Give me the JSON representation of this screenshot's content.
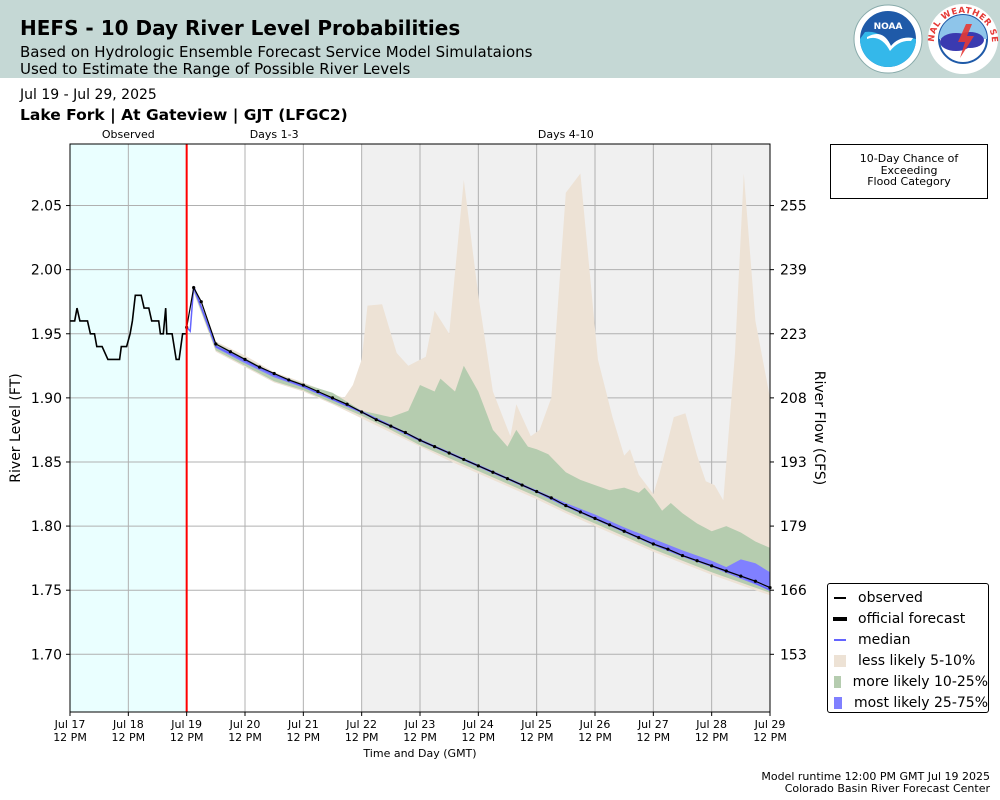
{
  "header": {
    "title": "HEFS - 10 Day River Level Probabilities",
    "subtitle1": "Based on Hydrologic Ensemble Forecast Service Model Simulataions",
    "subtitle2": "Used to Estimate the Range of Possible River Levels",
    "noaa_logo_text": "NOAA",
    "nws_logo_text": "NATIONAL WEATHER SERVICE"
  },
  "date_range": "Jul 19 - Jul 29, 2025",
  "location": "Lake Fork | At Gateview | GJT (LFGC2)",
  "exceedance_box": {
    "line1": "10-Day Chance of",
    "line2": "Exceeding",
    "line3": "Flood Category"
  },
  "footer": {
    "runtime": "Model runtime 12:00 PM GMT Jul 19 2025",
    "center": "Colorado Basin River Forecast Center"
  },
  "colors": {
    "observed_bg": "#eaffff",
    "later_bg": "#f0f0f0",
    "now_line": "#ff0000",
    "observed": "#000000",
    "median": "#6464ff",
    "less_likely": "#ede2d5",
    "more_likely": "#b5ccaf",
    "most_likely": "#8080ff"
  },
  "legend": [
    {
      "key": "observed",
      "label": "observed",
      "style": "line",
      "color": "#000000"
    },
    {
      "key": "official",
      "label": "official forecast",
      "style": "dotline",
      "color": "#000000"
    },
    {
      "key": "median",
      "label": "median",
      "style": "line",
      "color": "#6464ff"
    },
    {
      "key": "less",
      "label": "less likely 5-10%",
      "style": "box",
      "color": "#ede2d5"
    },
    {
      "key": "more",
      "label": "more likely 10-25%",
      "style": "box",
      "color": "#b5ccaf"
    },
    {
      "key": "most",
      "label": "most likely 25-75%",
      "style": "box",
      "color": "#8080ff"
    }
  ],
  "chart_data": {
    "type": "area",
    "xlabel": "Time and Day (GMT)",
    "ylabel": "River Level (FT)",
    "y2label": "River Flow (CFS)",
    "xlim": [
      0,
      12
    ],
    "ylim": [
      1.655,
      2.098
    ],
    "x_ticks": [
      {
        "x": 0,
        "line1": "Jul 17",
        "line2": "12 PM"
      },
      {
        "x": 1,
        "line1": "Jul 18",
        "line2": "12 PM"
      },
      {
        "x": 2,
        "line1": "Jul 19",
        "line2": "12 PM"
      },
      {
        "x": 3,
        "line1": "Jul 20",
        "line2": "12 PM"
      },
      {
        "x": 4,
        "line1": "Jul 21",
        "line2": "12 PM"
      },
      {
        "x": 5,
        "line1": "Jul 22",
        "line2": "12 PM"
      },
      {
        "x": 6,
        "line1": "Jul 23",
        "line2": "12 PM"
      },
      {
        "x": 7,
        "line1": "Jul 24",
        "line2": "12 PM"
      },
      {
        "x": 8,
        "line1": "Jul 25",
        "line2": "12 PM"
      },
      {
        "x": 9,
        "line1": "Jul 26",
        "line2": "12 PM"
      },
      {
        "x": 10,
        "line1": "Jul 27",
        "line2": "12 PM"
      },
      {
        "x": 11,
        "line1": "Jul 28",
        "line2": "12 PM"
      },
      {
        "x": 12,
        "line1": "Jul 29",
        "line2": "12 PM"
      }
    ],
    "y_ticks": [
      1.7,
      1.75,
      1.8,
      1.85,
      1.9,
      1.95,
      2.0,
      2.05
    ],
    "y_tick_labels": [
      "1.70",
      "1.75",
      "1.80",
      "1.85",
      "1.90",
      "1.95",
      "2.00",
      "2.05"
    ],
    "y2_tick_labels": [
      "153",
      "166",
      "179",
      "193",
      "208",
      "223",
      "239",
      "255"
    ],
    "periods": [
      {
        "label": "Observed",
        "x_start": 0,
        "x_end": 2
      },
      {
        "label": "Days 1-3",
        "x_start": 2,
        "x_end": 5
      },
      {
        "label": "Days 4-10",
        "x_start": 5,
        "x_end": 12
      }
    ],
    "now_x": 2,
    "observed": [
      [
        0,
        1.96
      ],
      [
        0.08,
        1.96
      ],
      [
        0.12,
        1.97
      ],
      [
        0.17,
        1.96
      ],
      [
        0.3,
        1.96
      ],
      [
        0.35,
        1.95
      ],
      [
        0.42,
        1.95
      ],
      [
        0.46,
        1.94
      ],
      [
        0.55,
        1.94
      ],
      [
        0.65,
        1.93
      ],
      [
        0.85,
        1.93
      ],
      [
        0.88,
        1.94
      ],
      [
        0.97,
        1.94
      ],
      [
        1.03,
        1.95
      ],
      [
        1.07,
        1.96
      ],
      [
        1.12,
        1.98
      ],
      [
        1.22,
        1.98
      ],
      [
        1.27,
        1.97
      ],
      [
        1.35,
        1.97
      ],
      [
        1.4,
        1.96
      ],
      [
        1.52,
        1.96
      ],
      [
        1.55,
        1.95
      ],
      [
        1.6,
        1.95
      ],
      [
        1.64,
        1.97
      ],
      [
        1.66,
        1.95
      ],
      [
        1.75,
        1.95
      ],
      [
        1.82,
        1.93
      ],
      [
        1.87,
        1.93
      ],
      [
        1.93,
        1.95
      ],
      [
        2.0,
        1.95
      ]
    ],
    "official_forecast": [
      [
        2.0,
        1.955
      ],
      [
        2.12,
        1.986
      ],
      [
        2.25,
        1.975
      ],
      [
        2.5,
        1.942
      ],
      [
        2.75,
        1.936
      ],
      [
        3.0,
        1.93
      ],
      [
        3.25,
        1.924
      ],
      [
        3.5,
        1.919
      ],
      [
        3.75,
        1.914
      ],
      [
        4.0,
        1.91
      ],
      [
        4.25,
        1.905
      ],
      [
        4.5,
        1.9
      ],
      [
        4.75,
        1.895
      ],
      [
        5.0,
        1.889
      ],
      [
        5.25,
        1.883
      ],
      [
        5.5,
        1.878
      ],
      [
        5.75,
        1.873
      ],
      [
        6.0,
        1.867
      ],
      [
        6.25,
        1.862
      ],
      [
        6.5,
        1.857
      ],
      [
        6.75,
        1.852
      ],
      [
        7.0,
        1.847
      ],
      [
        7.25,
        1.842
      ],
      [
        7.5,
        1.837
      ],
      [
        7.75,
        1.832
      ],
      [
        8.0,
        1.827
      ],
      [
        8.25,
        1.822
      ],
      [
        8.5,
        1.816
      ],
      [
        8.75,
        1.811
      ],
      [
        9.0,
        1.806
      ],
      [
        9.25,
        1.801
      ],
      [
        9.5,
        1.796
      ],
      [
        9.75,
        1.791
      ],
      [
        10.0,
        1.786
      ],
      [
        10.25,
        1.782
      ],
      [
        10.5,
        1.777
      ],
      [
        10.75,
        1.773
      ],
      [
        11.0,
        1.769
      ],
      [
        11.25,
        1.765
      ],
      [
        11.5,
        1.761
      ],
      [
        11.75,
        1.757
      ],
      [
        12.0,
        1.752
      ]
    ],
    "median": [
      [
        2.0,
        1.955
      ],
      [
        2.06,
        1.952
      ],
      [
        2.12,
        1.987
      ],
      [
        2.5,
        1.94
      ],
      [
        3.0,
        1.929
      ],
      [
        3.5,
        1.918
      ],
      [
        4.0,
        1.909
      ],
      [
        4.5,
        1.899
      ],
      [
        5.0,
        1.889
      ],
      [
        5.5,
        1.878
      ],
      [
        6.0,
        1.867
      ],
      [
        6.5,
        1.857
      ],
      [
        7.0,
        1.847
      ],
      [
        7.5,
        1.837
      ],
      [
        8.0,
        1.827
      ],
      [
        8.5,
        1.816
      ],
      [
        9.0,
        1.806
      ],
      [
        9.5,
        1.796
      ],
      [
        10.0,
        1.786
      ],
      [
        10.5,
        1.777
      ],
      [
        11.0,
        1.769
      ],
      [
        11.5,
        1.761
      ],
      [
        12.0,
        1.75
      ]
    ],
    "less_likely_upper": [
      [
        2.0,
        1.955
      ],
      [
        2.12,
        1.988
      ],
      [
        2.5,
        1.944
      ],
      [
        3.0,
        1.933
      ],
      [
        3.5,
        1.92
      ],
      [
        4.0,
        1.912
      ],
      [
        4.5,
        1.903
      ],
      [
        4.7,
        1.9
      ],
      [
        4.85,
        1.91
      ],
      [
        5.0,
        1.93
      ],
      [
        5.1,
        1.972
      ],
      [
        5.35,
        1.973
      ],
      [
        5.6,
        1.935
      ],
      [
        5.8,
        1.925
      ],
      [
        6.1,
        1.932
      ],
      [
        6.25,
        1.968
      ],
      [
        6.5,
        1.95
      ],
      [
        6.75,
        2.07
      ],
      [
        7.0,
        1.98
      ],
      [
        7.25,
        1.905
      ],
      [
        7.55,
        1.87
      ],
      [
        7.65,
        1.895
      ],
      [
        7.9,
        1.87
      ],
      [
        8.05,
        1.875
      ],
      [
        8.25,
        1.9
      ],
      [
        8.5,
        2.06
      ],
      [
        8.75,
        2.075
      ],
      [
        9.05,
        1.93
      ],
      [
        9.3,
        1.885
      ],
      [
        9.5,
        1.855
      ],
      [
        9.6,
        1.86
      ],
      [
        9.75,
        1.84
      ],
      [
        10.0,
        1.825
      ],
      [
        10.1,
        1.84
      ],
      [
        10.35,
        1.885
      ],
      [
        10.55,
        1.888
      ],
      [
        10.75,
        1.855
      ],
      [
        10.9,
        1.835
      ],
      [
        11.05,
        1.832
      ],
      [
        11.2,
        1.82
      ],
      [
        11.4,
        1.935
      ],
      [
        11.55,
        2.075
      ],
      [
        11.75,
        1.96
      ],
      [
        12.0,
        1.9
      ]
    ],
    "less_likely_lower": [
      [
        2.0,
        1.955
      ],
      [
        2.12,
        1.982
      ],
      [
        2.5,
        1.936
      ],
      [
        3.0,
        1.924
      ],
      [
        3.5,
        1.912
      ],
      [
        4.0,
        1.905
      ],
      [
        4.5,
        1.895
      ],
      [
        5.0,
        1.884
      ],
      [
        5.5,
        1.873
      ],
      [
        6.0,
        1.862
      ],
      [
        6.5,
        1.851
      ],
      [
        7.0,
        1.841
      ],
      [
        7.5,
        1.831
      ],
      [
        8.0,
        1.821
      ],
      [
        8.5,
        1.81
      ],
      [
        9.0,
        1.8
      ],
      [
        9.5,
        1.79
      ],
      [
        10.0,
        1.78
      ],
      [
        10.5,
        1.771
      ],
      [
        11.0,
        1.762
      ],
      [
        11.5,
        1.754
      ],
      [
        12.0,
        1.746
      ]
    ],
    "more_likely_upper": [
      [
        2.0,
        1.955
      ],
      [
        2.12,
        1.987
      ],
      [
        2.5,
        1.943
      ],
      [
        3.0,
        1.931
      ],
      [
        3.5,
        1.919
      ],
      [
        4.0,
        1.911
      ],
      [
        4.5,
        1.904
      ],
      [
        5.0,
        1.89
      ],
      [
        5.5,
        1.885
      ],
      [
        5.8,
        1.89
      ],
      [
        6.0,
        1.91
      ],
      [
        6.25,
        1.905
      ],
      [
        6.35,
        1.915
      ],
      [
        6.6,
        1.905
      ],
      [
        6.75,
        1.925
      ],
      [
        7.0,
        1.905
      ],
      [
        7.25,
        1.875
      ],
      [
        7.5,
        1.862
      ],
      [
        7.65,
        1.875
      ],
      [
        7.85,
        1.862
      ],
      [
        8.0,
        1.86
      ],
      [
        8.2,
        1.856
      ],
      [
        8.5,
        1.842
      ],
      [
        8.75,
        1.836
      ],
      [
        9.0,
        1.832
      ],
      [
        9.25,
        1.828
      ],
      [
        9.5,
        1.83
      ],
      [
        9.75,
        1.826
      ],
      [
        9.85,
        1.83
      ],
      [
        10.0,
        1.822
      ],
      [
        10.15,
        1.812
      ],
      [
        10.3,
        1.818
      ],
      [
        10.5,
        1.81
      ],
      [
        10.75,
        1.802
      ],
      [
        11.0,
        1.796
      ],
      [
        11.25,
        1.8
      ],
      [
        11.5,
        1.795
      ],
      [
        11.75,
        1.788
      ],
      [
        12.0,
        1.783
      ]
    ],
    "more_likely_lower": [
      [
        2.0,
        1.955
      ],
      [
        2.12,
        1.983
      ],
      [
        2.5,
        1.937
      ],
      [
        3.0,
        1.925
      ],
      [
        3.5,
        1.913
      ],
      [
        4.0,
        1.906
      ],
      [
        4.5,
        1.896
      ],
      [
        5.0,
        1.886
      ],
      [
        5.5,
        1.875
      ],
      [
        6.0,
        1.863
      ],
      [
        6.5,
        1.853
      ],
      [
        7.0,
        1.843
      ],
      [
        7.5,
        1.833
      ],
      [
        8.0,
        1.823
      ],
      [
        8.5,
        1.812
      ],
      [
        9.0,
        1.802
      ],
      [
        9.5,
        1.792
      ],
      [
        10.0,
        1.782
      ],
      [
        10.5,
        1.773
      ],
      [
        11.0,
        1.764
      ],
      [
        11.5,
        1.756
      ],
      [
        12.0,
        1.748
      ]
    ],
    "most_likely_upper": [
      [
        2.0,
        1.956
      ],
      [
        2.12,
        1.986
      ],
      [
        2.5,
        1.941
      ],
      [
        3.0,
        1.93
      ],
      [
        3.5,
        1.918
      ],
      [
        4.0,
        1.91
      ],
      [
        4.5,
        1.9
      ],
      [
        5.0,
        1.89
      ],
      [
        5.5,
        1.879
      ],
      [
        6.0,
        1.868
      ],
      [
        6.5,
        1.858
      ],
      [
        7.0,
        1.848
      ],
      [
        7.5,
        1.838
      ],
      [
        8.0,
        1.828
      ],
      [
        8.5,
        1.818
      ],
      [
        9.0,
        1.809
      ],
      [
        9.5,
        1.799
      ],
      [
        10.0,
        1.79
      ],
      [
        10.5,
        1.781
      ],
      [
        11.0,
        1.773
      ],
      [
        11.25,
        1.768
      ],
      [
        11.5,
        1.774
      ],
      [
        11.75,
        1.771
      ],
      [
        12.0,
        1.764
      ]
    ],
    "most_likely_lower": [
      [
        2.0,
        1.954
      ],
      [
        2.12,
        1.984
      ],
      [
        2.5,
        1.939
      ],
      [
        3.0,
        1.927
      ],
      [
        3.5,
        1.916
      ],
      [
        4.0,
        1.908
      ],
      [
        4.5,
        1.898
      ],
      [
        5.0,
        1.888
      ],
      [
        5.5,
        1.877
      ],
      [
        6.0,
        1.866
      ],
      [
        6.5,
        1.856
      ],
      [
        7.0,
        1.846
      ],
      [
        7.5,
        1.836
      ],
      [
        8.0,
        1.826
      ],
      [
        8.5,
        1.815
      ],
      [
        9.0,
        1.805
      ],
      [
        9.5,
        1.795
      ],
      [
        10.0,
        1.785
      ],
      [
        10.5,
        1.776
      ],
      [
        11.0,
        1.768
      ],
      [
        11.5,
        1.759
      ],
      [
        12.0,
        1.75
      ]
    ]
  }
}
